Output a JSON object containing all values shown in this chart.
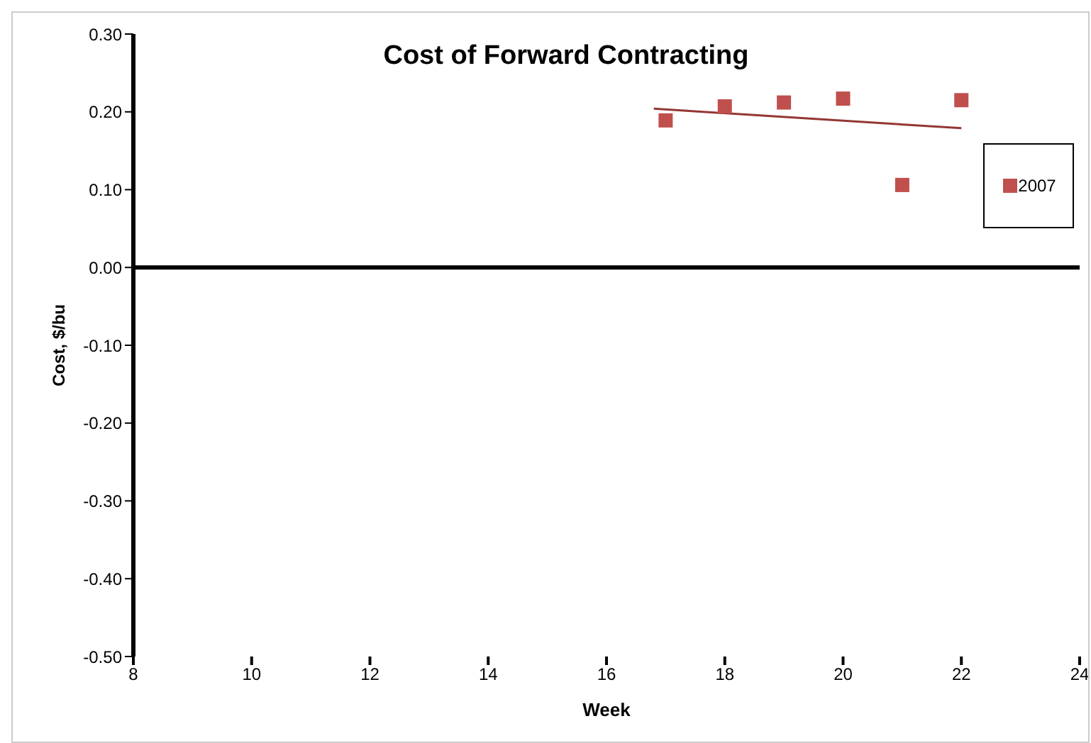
{
  "chart_data": {
    "type": "scatter",
    "title": "Cost of Forward Contracting",
    "xlabel": "Week",
    "ylabel": "Cost, $/bu",
    "series": [
      {
        "name": "2007",
        "marker": "square",
        "color": "#c0504d",
        "x": [
          17,
          18,
          19,
          20,
          21,
          22
        ],
        "values": [
          0.189,
          0.207,
          0.212,
          0.217,
          0.106,
          0.215
        ]
      },
      {
        "type": "line",
        "marker": "none",
        "color": "#943634",
        "x": [
          16.8,
          22
        ],
        "values": [
          0.204,
          0.179
        ]
      }
    ],
    "xlim": [
      8,
      24
    ],
    "xticks": [
      8,
      10,
      12,
      14,
      16,
      18,
      20,
      22,
      24
    ],
    "ylim": [
      -0.5,
      0.3
    ],
    "yticks": [
      {
        "value": -0.5,
        "label": "-0.50"
      },
      {
        "value": -0.4,
        "label": "-0.40"
      },
      {
        "value": -0.3,
        "label": "-0.30"
      },
      {
        "value": -0.2,
        "label": "-0.20"
      },
      {
        "value": -0.1,
        "label": "-0.10"
      },
      {
        "value": 0,
        "label": "0.00"
      },
      {
        "value": 0.1,
        "label": "0.10"
      },
      {
        "value": 0.2,
        "label": "0.20"
      },
      {
        "value": 0.3,
        "label": "0.30"
      }
    ],
    "ref_lines": [
      {
        "axis": "y",
        "value": 0,
        "color": "#000000"
      }
    ],
    "legend": "right"
  }
}
